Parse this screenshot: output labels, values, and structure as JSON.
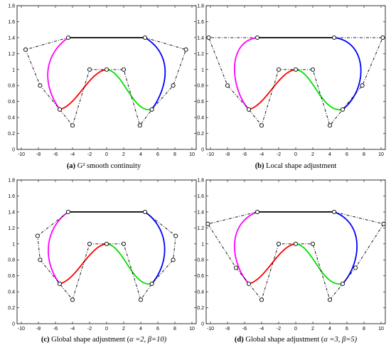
{
  "figure": {
    "panels": [
      {
        "label": "(a)",
        "caption": "G² smooth continuity"
      },
      {
        "label": "(b)",
        "caption": "Local shape adjustment"
      },
      {
        "label": "(c)",
        "caption_pre": "Global shape adjustment (",
        "caption_rest": "α =2, β=10)"
      },
      {
        "label": "(d)",
        "caption_pre": "Global shape adjustment (",
        "caption_rest": "α =3, β=5)"
      }
    ]
  },
  "colors": {
    "seg1": "#ff00ff",
    "seg2": "#ff0000",
    "seg3": "#00e000",
    "seg4": "#0000ff",
    "top": "#000000",
    "control": "#000000"
  },
  "chart_data": [
    {
      "type": "line",
      "xlim": [
        -10,
        10
      ],
      "ylim": [
        0,
        1.8
      ],
      "xticks": [
        "-10",
        "-8",
        "-6",
        "-4",
        "-2",
        "0",
        "2",
        "4",
        "6",
        "8",
        "10"
      ],
      "yticks": [
        "0",
        "0.2",
        "0.4",
        "0.6",
        "0.8",
        "1",
        "1.2",
        "1.4",
        "1.6",
        "1.8"
      ],
      "xmin": -10.5,
      "xmax": 10.5,
      "control_polygon": [
        [
          4.5,
          1.4
        ],
        [
          9.3,
          1.25
        ],
        [
          7.8,
          0.8
        ],
        [
          5.3,
          0.5
        ],
        [
          3.9,
          0.3
        ],
        [
          2,
          1
        ],
        [
          0,
          1
        ],
        [
          -2,
          1
        ],
        [
          -4,
          0.3
        ],
        [
          -5.5,
          0.5
        ],
        [
          -7.8,
          0.8
        ],
        [
          -9.5,
          1.25
        ],
        [
          -4.5,
          1.4
        ]
      ],
      "curves": [
        {
          "color_key": "seg1",
          "points": [
            [
              -4.5,
              1.4
            ],
            [
              -7.4,
              1.18
            ],
            [
              -7.6,
              0.82
            ],
            [
              -5.5,
              0.5
            ]
          ]
        },
        {
          "color_key": "seg2",
          "points": [
            [
              -5.5,
              0.5
            ],
            [
              -3.5,
              0.55
            ],
            [
              -2,
              0.98
            ],
            [
              0,
              1
            ]
          ]
        },
        {
          "color_key": "seg3",
          "points": [
            [
              0,
              1
            ],
            [
              2,
              0.98
            ],
            [
              3,
              0.45
            ],
            [
              5.3,
              0.5
            ]
          ]
        },
        {
          "color_key": "seg4",
          "points": [
            [
              5.3,
              0.5
            ],
            [
              7.4,
              0.82
            ],
            [
              7.6,
              1.2
            ],
            [
              4.5,
              1.4
            ]
          ]
        },
        {
          "color_key": "top",
          "points": [
            [
              -4.5,
              1.4
            ],
            [
              4.5,
              1.4
            ]
          ]
        }
      ]
    },
    {
      "type": "line",
      "xlim": [
        -10,
        10
      ],
      "ylim": [
        0,
        1.8
      ],
      "xticks": [
        "-10",
        "-8",
        "-6",
        "-4",
        "-2",
        "0",
        "2",
        "4",
        "6",
        "8",
        "10"
      ],
      "yticks": [
        "0",
        "0.2",
        "0.4",
        "0.6",
        "0.8",
        "1",
        "1.2",
        "1.4",
        "1.6",
        "1.8"
      ],
      "xmin": -10.5,
      "xmax": 10.5,
      "control_polygon": [
        [
          4.5,
          1.4
        ],
        [
          10.2,
          1.4
        ],
        [
          7.8,
          0.8
        ],
        [
          5.5,
          0.5
        ],
        [
          4,
          0.3
        ],
        [
          2,
          1
        ],
        [
          0,
          1
        ],
        [
          -2,
          1
        ],
        [
          -4,
          0.3
        ],
        [
          -5.5,
          0.5
        ],
        [
          -8,
          0.8
        ],
        [
          -10.2,
          1.4
        ],
        [
          -4.5,
          1.4
        ]
      ],
      "curves": [
        {
          "color_key": "seg1",
          "points": [
            [
              -4.5,
              1.4
            ],
            [
              -8.2,
              1.35
            ],
            [
              -7.6,
              0.75
            ],
            [
              -5.5,
              0.5
            ]
          ]
        },
        {
          "color_key": "seg2",
          "points": [
            [
              -5.5,
              0.5
            ],
            [
              -3.5,
              0.55
            ],
            [
              -2,
              0.98
            ],
            [
              0,
              1
            ]
          ]
        },
        {
          "color_key": "seg3",
          "points": [
            [
              0,
              1
            ],
            [
              2,
              0.98
            ],
            [
              3,
              0.45
            ],
            [
              5.5,
              0.5
            ]
          ]
        },
        {
          "color_key": "seg4",
          "points": [
            [
              5.5,
              0.5
            ],
            [
              8.5,
              0.75
            ],
            [
              8.5,
              1.35
            ],
            [
              4.5,
              1.4
            ]
          ]
        },
        {
          "color_key": "top",
          "points": [
            [
              -4.5,
              1.4
            ],
            [
              4.5,
              1.4
            ]
          ]
        }
      ]
    },
    {
      "type": "line",
      "xlim": [
        -10,
        10
      ],
      "ylim": [
        0,
        1.8
      ],
      "xticks": [
        "-10",
        "-8",
        "-6",
        "-4",
        "-2",
        "0",
        "2",
        "4",
        "6",
        "8",
        "10"
      ],
      "yticks": [
        "0",
        "0.2",
        "0.4",
        "0.6",
        "0.8",
        "1",
        "1.2",
        "1.4",
        "1.6",
        "1.8"
      ],
      "xmin": -10.5,
      "xmax": 10.5,
      "control_polygon": [
        [
          4.5,
          1.4
        ],
        [
          8.1,
          1.1
        ],
        [
          7.8,
          0.8
        ],
        [
          5.3,
          0.5
        ],
        [
          4,
          0.3
        ],
        [
          2,
          1
        ],
        [
          0,
          1
        ],
        [
          -2,
          1
        ],
        [
          -4,
          0.3
        ],
        [
          -5.5,
          0.5
        ],
        [
          -7.8,
          0.8
        ],
        [
          -8.1,
          1.1
        ],
        [
          -4.5,
          1.4
        ]
      ],
      "curves": [
        {
          "color_key": "seg1",
          "points": [
            [
              -4.5,
              1.4
            ],
            [
              -7.2,
              1.2
            ],
            [
              -7.6,
              0.8
            ],
            [
              -5.5,
              0.5
            ]
          ]
        },
        {
          "color_key": "seg2",
          "points": [
            [
              -5.5,
              0.5
            ],
            [
              -3.5,
              0.55
            ],
            [
              -2,
              0.98
            ],
            [
              0,
              1
            ]
          ]
        },
        {
          "color_key": "seg3",
          "points": [
            [
              0,
              1
            ],
            [
              2,
              0.98
            ],
            [
              3,
              0.45
            ],
            [
              5.3,
              0.5
            ]
          ]
        },
        {
          "color_key": "seg4",
          "points": [
            [
              5.3,
              0.5
            ],
            [
              7.6,
              0.8
            ],
            [
              7.2,
              1.2
            ],
            [
              4.5,
              1.4
            ]
          ]
        },
        {
          "color_key": "top",
          "points": [
            [
              -4.5,
              1.4
            ],
            [
              4.5,
              1.4
            ]
          ]
        }
      ]
    },
    {
      "type": "line",
      "xlim": [
        -10,
        10
      ],
      "ylim": [
        0,
        1.8
      ],
      "xticks": [
        "-10",
        "-8",
        "-6",
        "-4",
        "-2",
        "0",
        "2",
        "4",
        "6",
        "8",
        "10"
      ],
      "yticks": [
        "0",
        "0.2",
        "0.4",
        "0.6",
        "0.8",
        "1",
        "1.2",
        "1.4",
        "1.6",
        "1.8"
      ],
      "xmin": -10.5,
      "xmax": 10.5,
      "control_polygon": [
        [
          4.5,
          1.4
        ],
        [
          10.3,
          1.25
        ],
        [
          7,
          0.7
        ],
        [
          5.5,
          0.5
        ],
        [
          4,
          0.3
        ],
        [
          2,
          1
        ],
        [
          0,
          1
        ],
        [
          -2,
          1
        ],
        [
          -4,
          0.3
        ],
        [
          -5.5,
          0.5
        ],
        [
          -7,
          0.7
        ],
        [
          -10.3,
          1.25
        ],
        [
          -4.5,
          1.4
        ]
      ],
      "curves": [
        {
          "color_key": "seg1",
          "points": [
            [
              -4.5,
              1.4
            ],
            [
              -8.2,
              1.25
            ],
            [
              -7.6,
              0.75
            ],
            [
              -5.5,
              0.5
            ]
          ]
        },
        {
          "color_key": "seg2",
          "points": [
            [
              -5.5,
              0.5
            ],
            [
              -3.5,
              0.55
            ],
            [
              -2,
              0.98
            ],
            [
              0,
              1
            ]
          ]
        },
        {
          "color_key": "seg3",
          "points": [
            [
              0,
              1
            ],
            [
              2,
              0.98
            ],
            [
              3,
              0.45
            ],
            [
              5.5,
              0.5
            ]
          ]
        },
        {
          "color_key": "seg4",
          "points": [
            [
              5.5,
              0.5
            ],
            [
              7.6,
              0.75
            ],
            [
              8.2,
              1.25
            ],
            [
              4.5,
              1.4
            ]
          ]
        },
        {
          "color_key": "top",
          "points": [
            [
              -4.5,
              1.4
            ],
            [
              4.5,
              1.4
            ]
          ]
        }
      ]
    }
  ]
}
